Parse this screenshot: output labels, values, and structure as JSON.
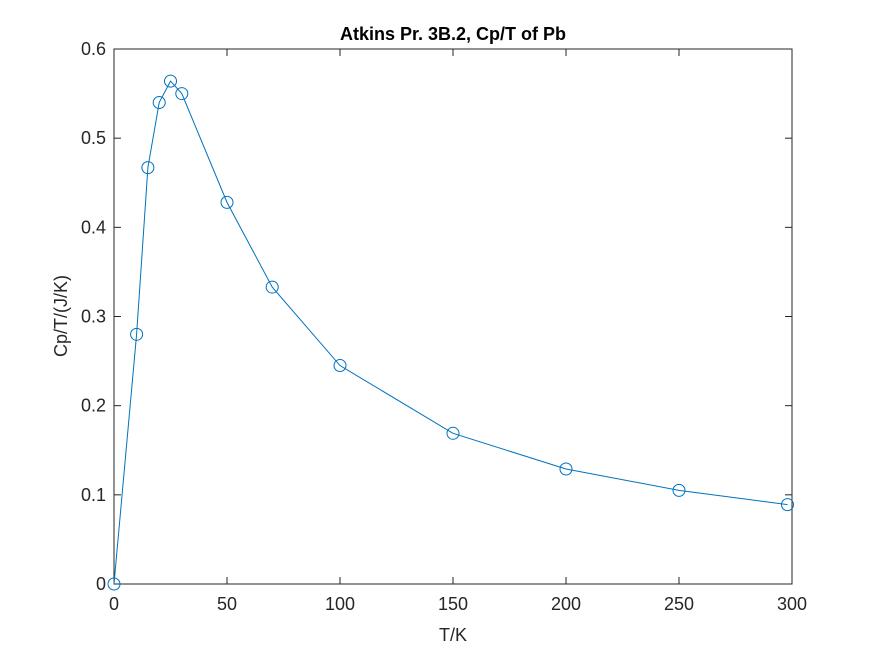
{
  "chart_data": {
    "type": "line",
    "title": "Atkins Pr. 3B.2, Cp/T of Pb",
    "xlabel": "T/K",
    "ylabel": "Cp/T/(J/K)",
    "xlim": [
      0,
      300
    ],
    "ylim": [
      0,
      0.6
    ],
    "xticks": [
      0,
      50,
      100,
      150,
      200,
      250,
      300
    ],
    "yticks": [
      0,
      0.1,
      0.2,
      0.3,
      0.4,
      0.5,
      0.6
    ],
    "xtick_labels": [
      "0",
      "50",
      "100",
      "150",
      "200",
      "250",
      "300"
    ],
    "ytick_labels": [
      "0",
      "0.1",
      "0.2",
      "0.3",
      "0.4",
      "0.5",
      "0.6"
    ],
    "grid": false,
    "box": true,
    "marker": "circle",
    "series": [
      {
        "color": "#0072bd",
        "x": [
          0,
          10,
          15,
          20,
          25,
          30,
          50,
          70,
          100,
          150,
          200,
          250,
          298
        ],
        "y": [
          0,
          0.28,
          0.467,
          0.54,
          0.564,
          0.55,
          0.428,
          0.333,
          0.245,
          0.169,
          0.129,
          0.105,
          0.089
        ]
      }
    ]
  }
}
